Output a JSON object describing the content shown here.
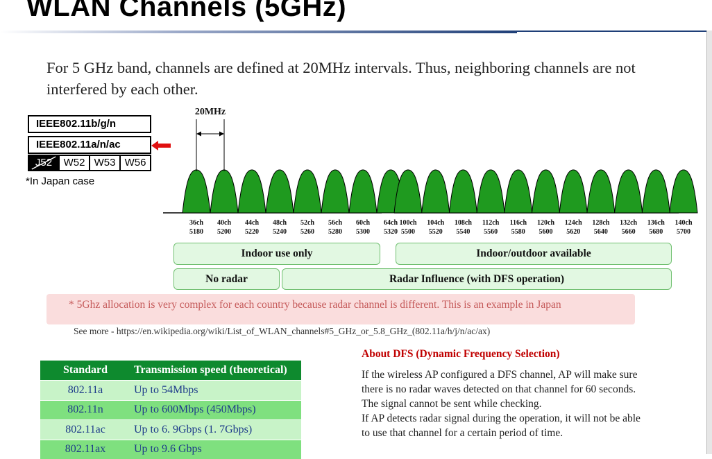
{
  "slide": {
    "title": "WLAN Channels (5GHz)",
    "intro": "For 5 GHz band, channels are defined at 20MHz intervals. Thus, neighboring channels are not interfered by each other."
  },
  "standards_boxes": {
    "bgn": "IEEE802.11b/g/n",
    "anac": "IEEE802.11a/n/ac",
    "bands": [
      "J52",
      "W52",
      "W53",
      "W56"
    ],
    "japan_note": "*In Japan case"
  },
  "chart_data": {
    "type": "channel-spectrum",
    "spacing_label": "20MHz",
    "groups": [
      {
        "channels": [
          "36ch",
          "40ch",
          "44ch",
          "48ch",
          "52ch",
          "56ch",
          "60ch",
          "64ch"
        ],
        "frequencies": [
          "5180",
          "5200",
          "5220",
          "5240",
          "5260",
          "5280",
          "5300",
          "5320"
        ]
      },
      {
        "channels": [
          "100ch",
          "104ch",
          "108ch",
          "112ch",
          "116ch",
          "120ch",
          "124ch",
          "128ch",
          "132ch",
          "136ch",
          "140ch"
        ],
        "frequencies": [
          "5500",
          "5520",
          "5540",
          "5560",
          "5580",
          "5600",
          "5620",
          "5640",
          "5660",
          "5680",
          "5700"
        ]
      }
    ],
    "colors": {
      "lobe_fill": "#1f9a1f",
      "lobe_stroke": "#000000"
    }
  },
  "bars": {
    "indoor_only": "Indoor use only",
    "indoor_outdoor": "Indoor/outdoor available",
    "no_radar": "No radar",
    "radar_influence": "Radar Influence (with DFS operation)"
  },
  "note": {
    "text": "* 5Ghz allocation is very complex for each country because radar channel is different. This is an example in Japan",
    "see_more": "See more - https://en.wikipedia.org/wiki/List_of_WLAN_channels#5_GHz_or_5.8_GHz_(802.11a/h/j/n/ac/ax)"
  },
  "table": {
    "headers": [
      "Standard",
      "Transmission speed (theoretical)"
    ],
    "rows": [
      {
        "standard": "802.11a",
        "speed": "Up to 54Mbps"
      },
      {
        "standard": "802.11n",
        "speed": "Up to 600Mbps (450Mbps)"
      },
      {
        "standard": "802.11ac",
        "speed": "Up to 6. 9Gbps (1. 7Gbps)"
      },
      {
        "standard": "802.11ax",
        "speed": "Up to 9.6 Gbps"
      }
    ]
  },
  "dfs": {
    "title": "About DFS (Dynamic Frequency Selection)",
    "lines": [
      "If the wireless AP configured a DFS channel, AP will make sure",
      "there is no radar waves detected on that channel for 60 seconds.",
      "The signal cannot be sent while checking.",
      "If AP detects radar signal during the operation, it will not be able",
      "to use that channel for a certain period of time."
    ]
  }
}
